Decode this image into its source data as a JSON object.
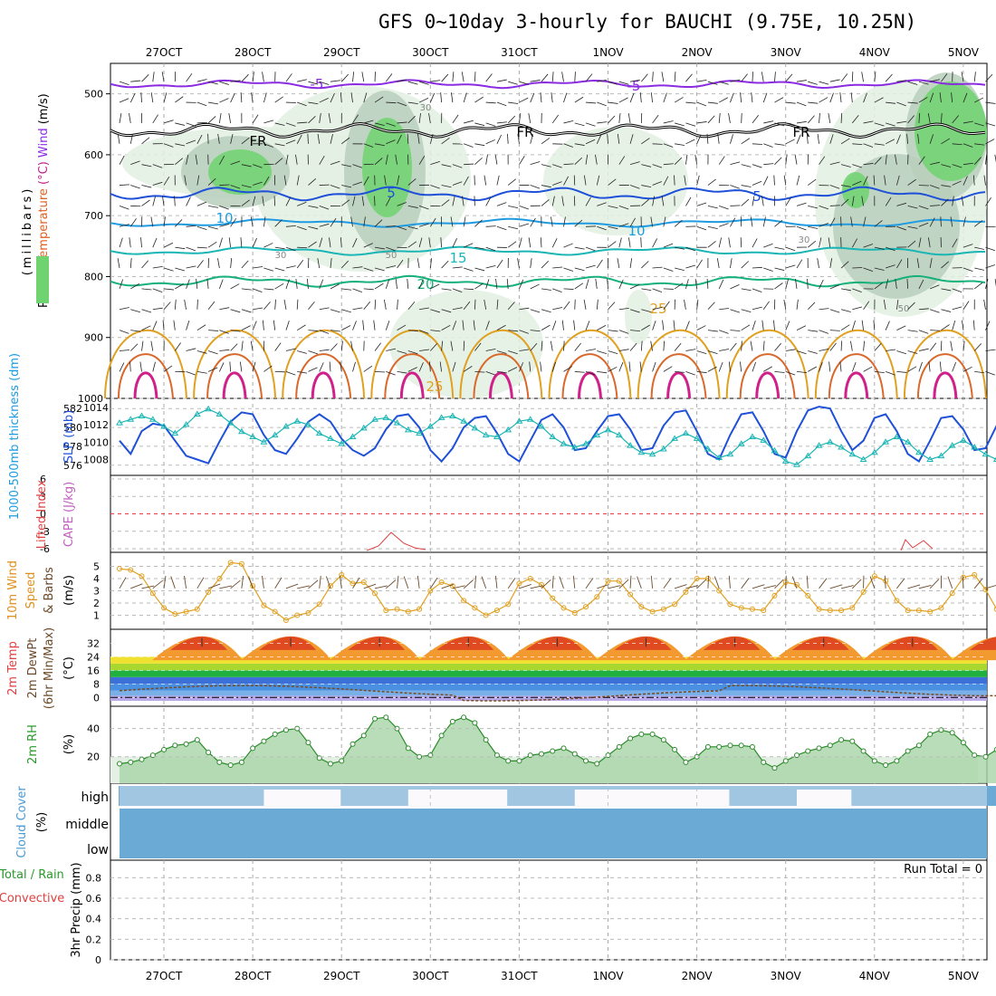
{
  "title": "GFS 0~10day 3-hourly for BAUCHI (9.75E, 10.25N)",
  "dates": [
    "27OCT",
    "28OCT",
    "29OCT",
    "30OCT",
    "31OCT",
    "1NOV",
    "2NOV",
    "3NOV",
    "4NOV",
    "5NOV"
  ],
  "colors": {
    "purple": "#8a2be2",
    "blue": "#1e50d8",
    "lightblue": "#1e9be0",
    "teal": "#1ab5b5",
    "green": "#16b07a",
    "orange": "#e0a020",
    "darkorange": "#d9682a",
    "magenta": "#d0208a",
    "rh_light": "#e3f0e3",
    "rh_mid": "#b9cfbc",
    "rh_dark": "#6fd36f",
    "cloud": "#6aaad4"
  },
  "panels": {
    "upper": {
      "ylabel_parts": [
        "RH (%)",
        "Temperature",
        "(°C)",
        "Wind",
        "(m/s)"
      ],
      "ylabel2": "(millibars)",
      "yticks": [
        500,
        600,
        700,
        800,
        900,
        1000
      ],
      "ylim": [
        450,
        1000
      ],
      "temp_labels": [
        "-5",
        "-5",
        "5",
        "5",
        "10",
        "10",
        "15",
        "20",
        "25",
        "25",
        "FR",
        "FR",
        "FR",
        "30",
        "30",
        "30",
        "50",
        "50"
      ]
    },
    "slp": {
      "ylabel_left": "1000-500mb thickness (dm)",
      "ylabel_right": "SLP (mb)",
      "yticks_left": [
        576,
        578,
        580,
        582
      ],
      "yticks_right": [
        1008,
        1010,
        1012,
        1014
      ]
    },
    "cape": {
      "ylabel_left": "Lifted Index",
      "ylabel_right": "CAPE (J/kg)",
      "yticks": [
        -6,
        -3,
        0,
        3,
        6
      ],
      "yticklabels": [
        "6",
        "3",
        "0",
        "-3",
        "-6"
      ]
    },
    "wind10": {
      "ylabel_parts": [
        "10m Wind",
        "Speed",
        "& Barbs",
        "(m/s)"
      ],
      "yticks": [
        1,
        2,
        3,
        4,
        5
      ]
    },
    "temp2m": {
      "ylabel_parts": [
        "2m Temp",
        "2m DewPt",
        "(6hr Min/Max)",
        "(°C)"
      ],
      "yticks": [
        0,
        8,
        16,
        24,
        32
      ]
    },
    "rh2m": {
      "ylabel_parts": [
        "2m RH",
        "(%)"
      ],
      "yticks": [
        20,
        40
      ]
    },
    "cloud": {
      "ylabel_parts": [
        "Cloud Cover",
        "(%)"
      ],
      "levels": [
        "high",
        "middle",
        "low"
      ]
    },
    "precip": {
      "ylabel_parts": [
        "Total / Rain",
        "Convective",
        "3hr Precip (mm)"
      ],
      "yticks": [
        "0",
        "0.2",
        "0.4",
        "0.6",
        "0.8"
      ],
      "run_total": "Run Total = 0"
    }
  },
  "chart_data": [
    {
      "type": "line",
      "name": "1000-500mb thickness / SLP",
      "x_unit": "3-hourly steps from 26OCT 12Z",
      "series": [
        {
          "name": "1000-500mb thickness (dm)",
          "values": [
            578.6,
            577.2,
            579.6,
            580.4,
            580.2,
            578.6,
            577,
            576.6,
            576.2,
            578.5,
            580.6,
            581.6,
            581.4,
            579.2,
            577.6,
            577.2,
            578.8,
            580.6,
            581.4,
            580.6,
            578.8,
            577.6,
            577.0,
            577.8,
            579.8,
            581.2,
            581.4,
            580.0,
            577.6,
            576.4,
            577.8,
            580,
            581,
            581.2,
            579.4,
            577.2,
            576.4,
            578.6,
            580.8,
            581.4,
            580.0,
            577.6,
            577.8,
            579.6,
            581.2,
            581.4,
            579.8,
            577.6,
            577.8,
            580.2,
            581.6,
            581.8,
            579.6,
            577.2,
            576.6,
            579.2,
            581.4,
            581.6,
            579.6,
            577.2,
            576.8,
            579.6,
            581.8,
            582.2,
            582.0,
            579.6,
            577.6,
            578.6,
            581,
            581.4,
            579.6,
            577.2,
            576.4,
            578.6,
            581,
            581.2,
            579.8,
            577.6,
            577.8,
            580.2,
            580.6
          ]
        },
        {
          "name": "SLP (mb)",
          "values": [
            1012.2,
            1012.6,
            1013.0,
            1012.6,
            1011.8,
            1011.0,
            1012.0,
            1013.2,
            1013.8,
            1013.2,
            1012.2,
            1011.2,
            1010.6,
            1010.0,
            1010.8,
            1011.8,
            1012.4,
            1012.0,
            1011.0,
            1010.4,
            1009.8,
            1010.6,
            1011.6,
            1012.6,
            1012.8,
            1012.2,
            1011.4,
            1011.0,
            1011.8,
            1012.8,
            1013.0,
            1012.4,
            1011.6,
            1010.8,
            1010.6,
            1011.4,
            1012.4,
            1012.6,
            1011.8,
            1010.6,
            1009.8,
            1009.4,
            1009.8,
            1010.8,
            1011.4,
            1010.8,
            1009.6,
            1008.8,
            1008.6,
            1009.2,
            1010.4,
            1011.0,
            1010.4,
            1009.2,
            1008.2,
            1008.6,
            1009.8,
            1010.6,
            1010.2,
            1009.0,
            1007.8,
            1007.4,
            1008.4,
            1009.6,
            1010.0,
            1009.4,
            1008.6,
            1008.0,
            1008.8,
            1010.0,
            1010.6,
            1010.0,
            1008.8,
            1008.0,
            1008.4,
            1009.6,
            1010.2,
            1009.4,
            1008.6,
            1008.0,
            1007.8
          ]
        }
      ]
    },
    {
      "type": "line",
      "name": "10m Wind Speed (m/s)",
      "values": [
        4.8,
        4.7,
        4.2,
        2.8,
        1.6,
        1.1,
        1.3,
        1.5,
        2.9,
        4.0,
        5.3,
        5.2,
        3.4,
        1.8,
        1.3,
        0.6,
        1.0,
        1.2,
        1.9,
        3.4,
        4.3,
        3.6,
        3.7,
        2.8,
        1.4,
        1.5,
        1.3,
        1.5,
        3.0,
        3.7,
        3.4,
        2.2,
        1.6,
        1.0,
        1.4,
        1.9,
        3.6,
        4.0,
        3.5,
        2.4,
        1.6,
        1.2,
        1.7,
        2.5,
        3.8,
        3.8,
        2.7,
        1.7,
        1.3,
        1.5,
        1.9,
        2.9,
        4.0,
        4.0,
        3.0,
        1.9,
        1.6,
        1.5,
        1.4,
        2.6,
        3.7,
        3.5,
        2.6,
        1.5,
        1.4,
        1.4,
        1.6,
        2.9,
        4.2,
        3.8,
        2.2,
        1.4,
        1.4,
        1.3,
        1.6,
        2.8,
        4.1,
        4.3,
        3.1,
        1.5,
        1.3,
        1.2,
        1.4,
        2.0
      ]
    },
    {
      "type": "area",
      "name": "2m RH (%)",
      "values": [
        15,
        16,
        18,
        21,
        25,
        28,
        29,
        32,
        23,
        16,
        14,
        16,
        26,
        31,
        36,
        39,
        40,
        30,
        19,
        15,
        17,
        29,
        35,
        47,
        48,
        40,
        26,
        20,
        21,
        35,
        45,
        48,
        44,
        32,
        21,
        17,
        17,
        21,
        22,
        24,
        26,
        22,
        17,
        15,
        21,
        27,
        33,
        36,
        36,
        32,
        25,
        16,
        20,
        27,
        27,
        28,
        28,
        27,
        16,
        12,
        17,
        21,
        24,
        26,
        28,
        32,
        31,
        24,
        17,
        14,
        17,
        24,
        28,
        36,
        39,
        37,
        30,
        21,
        20,
        25,
        28,
        30
      ]
    },
    {
      "type": "bar",
      "name": "3hr Precip (mm)",
      "categories": [
        "Total",
        "Rain",
        "Convective"
      ],
      "values": [
        0,
        0,
        0
      ]
    }
  ]
}
